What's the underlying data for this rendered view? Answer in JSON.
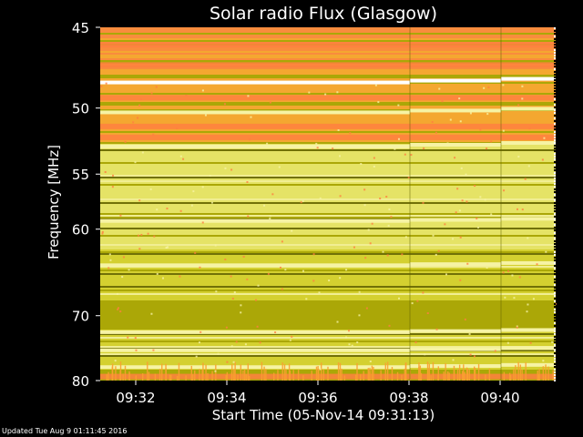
{
  "chart_data": {
    "type": "heatmap",
    "title": "Solar radio Flux (Glasgow)",
    "xlabel": "Start Time (05-Nov-14 09:31:13)",
    "ylabel": "Frequency [MHz]",
    "x_ticks": [
      "09:32",
      "09:34",
      "09:36",
      "09:38",
      "09:40"
    ],
    "x_tick_minutes": [
      0.78,
      2.78,
      4.78,
      6.78,
      8.78
    ],
    "x_range_minutes": [
      0,
      10
    ],
    "y_ticks": [
      45,
      50,
      55,
      60,
      70,
      80
    ],
    "ylim": [
      80,
      45
    ],
    "y_scale": "reciprocal",
    "colormap": [
      "#5f6000",
      "#a3a000",
      "#d3d030",
      "#e8e670",
      "#f6f3a4",
      "#f9a030",
      "#ff8040"
    ],
    "bright_bands_mhz": [
      48.3,
      50.3,
      52.8,
      59.2,
      63.8,
      72.3,
      75.0,
      77.7
    ],
    "orange_bands_mhz": [
      46.0,
      47.2,
      49.3,
      51.3,
      52.1,
      79.3
    ],
    "segment_boundaries_minutes": [
      6.8,
      8.8
    ]
  },
  "footer": {
    "updated": "Updated Tue Aug  9 01:11:45 2016"
  }
}
